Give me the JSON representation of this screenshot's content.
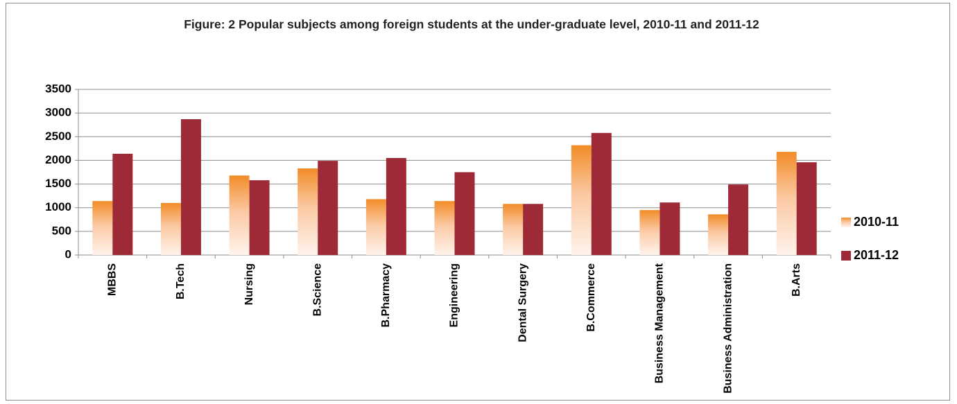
{
  "chart_data": {
    "type": "bar",
    "title": "Figure: 2 Popular subjects among foreign students at the under-graduate level, 2010-11 and 2011-12",
    "categories": [
      "MBBS",
      "B.Tech",
      "Nursing",
      "B.Science",
      "B.Pharmacy",
      "Engineering",
      "Dental Surgery",
      "B.Commerce",
      "Business Management",
      "Business Administration",
      "B.Arts"
    ],
    "series": [
      {
        "name": "2010-11",
        "color": "#f28c28",
        "values": [
          1140,
          1100,
          1680,
          1830,
          1180,
          1140,
          1080,
          2320,
          950,
          860,
          2180
        ]
      },
      {
        "name": "2011-12",
        "color": "#9e2a37",
        "values": [
          2140,
          2870,
          1580,
          1990,
          2050,
          1750,
          1080,
          2580,
          1110,
          1490,
          1960
        ]
      }
    ],
    "ylim": [
      0,
      3500
    ],
    "yticks": [
      0,
      500,
      1000,
      1500,
      2000,
      2500,
      3000,
      3500
    ],
    "grid": true,
    "legend": "right"
  }
}
